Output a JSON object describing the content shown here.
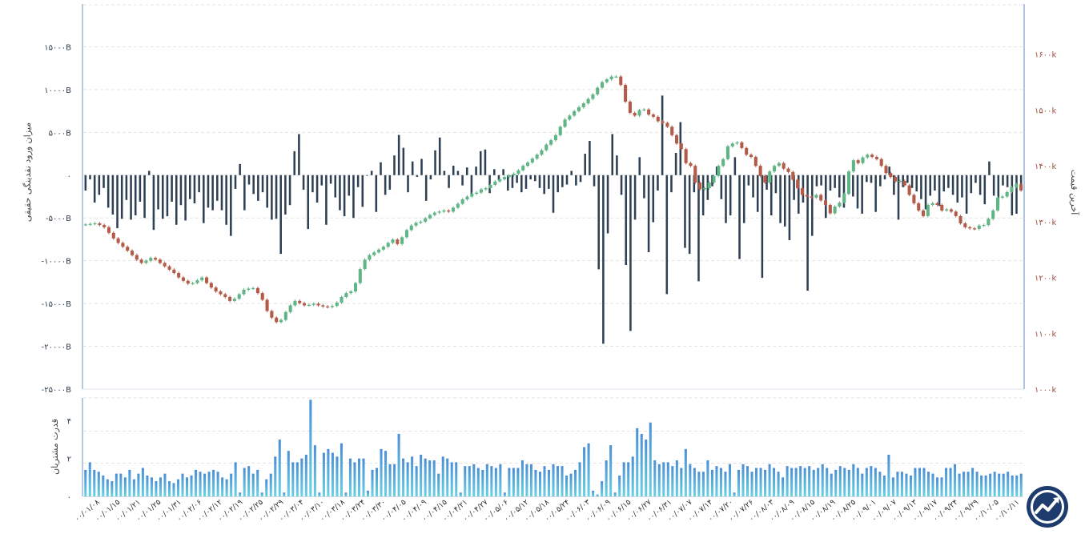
{
  "chart_data": [
    {
      "type": "bar+candlestick",
      "left_axis": {
        "label": "میزان ورود نقدینگی حقیقی",
        "ticks": [
          "۱۵۰۰۰B",
          "۱۰۰۰۰B",
          "۵۰۰۰B",
          "۰",
          "-۵۰۰۰B",
          "-۱۰۰۰۰B",
          "-۱۵۰۰۰B",
          "-۲۰۰۰۰B",
          "-۲۵۰۰۰B"
        ],
        "tick_values": [
          15000,
          10000,
          5000,
          0,
          -5000,
          -10000,
          -15000,
          -20000,
          -25000
        ],
        "ylim": [
          -25000,
          20000
        ],
        "unit": "B"
      },
      "right_axis": {
        "label": "آخرین قیمت",
        "ticks": [
          "۱۶۰۰k",
          "۱۵۰۰k",
          "۱۴۰۰k",
          "۱۳۰۰k",
          "۱۲۰۰k",
          "۱۱۰۰k",
          "۱۰۰۰k"
        ],
        "tick_values": [
          1600,
          1500,
          1400,
          1300,
          1200,
          1100,
          1000
        ],
        "ylim": [
          1000,
          1690
        ],
        "unit": "k"
      },
      "x_tick_labels": [
        "۰۰/۰۱/۰۸",
        "۰۰/۰۱/۱۵",
        "۰۰/۰۱/۲۱",
        "۰۰/۰۱/۲۵",
        "۰۰/۰۱/۳۱",
        "۰۰/۰۲/۰۶",
        "۰۰/۰۲/۱۲",
        "۰۰/۰۲/۱۹",
        "۰۰/۰۲/۲۵",
        "۰۰/۰۲/۲۹",
        "۰۰/۰۳/۰۴",
        "۰۰/۰۳/۱۰",
        "۰۰/۰۳/۱۸",
        "۰۰/۰۳/۲۴",
        "۰۰/۰۳/۳۰",
        "۰۰/۰۴/۰۵",
        "۰۰/۰۴/۰۹",
        "۰۰/۰۴/۱۵",
        "۰۰/۰۴/۲۱",
        "۰۰/۰۴/۲۷",
        "۰۰/۰۵/۰۶",
        "۰۰/۰۵/۱۲",
        "۰۰/۰۵/۱۸",
        "۰۰/۰۵/۲۴",
        "۰۰/۰۶/۰۳",
        "۰۰/۰۶/۰۹",
        "۰۰/۰۶/۱۵",
        "۰۰/۰۶/۲۷",
        "۰۰/۰۶/۳۱",
        "۰۰/۰۷/۰۷",
        "۰۰/۰۷/۱۴",
        "۰۰/۰۷/۲۰",
        "۰۰/۰۷/۲۶",
        "۰۰/۰۸/۰۳",
        "۰۰/۰۸/۰۹",
        "۰۰/۰۸/۱۵",
        "۰۰/۰۸/۱۹",
        "۰۰/۰۸/۲۵",
        "۰۰/۰۹/۰۱",
        "۰۰/۰۹/۰۷",
        "۰۰/۰۹/۱۳",
        "۰۰/۰۹/۱۷",
        "۰۰/۰۹/۲۴",
        "۰۰/۰۹/۲۹",
        "۰۰/۱۰/۰۵",
        "۰۰/۱۰/۱۱"
      ],
      "inflow_values": [
        -1800,
        -500,
        -3200,
        -2300,
        -1500,
        -3800,
        -4600,
        -6200,
        -5100,
        -2900,
        -5200,
        -4700,
        -3100,
        -5000,
        500,
        -6400,
        -4000,
        -5100,
        -4800,
        -3100,
        -5800,
        -3500,
        -5300,
        -2800,
        -3300,
        -2000,
        -5600,
        -3800,
        -4100,
        -3000,
        -4100,
        -5800,
        -7100,
        -1600,
        1300,
        -4100,
        -1100,
        -2200,
        -3000,
        -2000,
        -3800,
        -5200,
        -5100,
        -9200,
        -4600,
        -3500,
        2800,
        4800,
        -1700,
        -6300,
        -2000,
        -3200,
        -1200,
        -5800,
        -1000,
        -2600,
        -4100,
        -4800,
        -2400,
        -5000,
        -1400,
        -3700,
        0,
        500,
        -4300,
        1500,
        -2300,
        -1700,
        2300,
        4700,
        3200,
        -2000,
        1600,
        -200,
        1900,
        -3000,
        -500,
        2900,
        4400,
        500,
        -1500,
        1100,
        500,
        -1200,
        900,
        -2300,
        1000,
        2800,
        3000,
        -2100,
        700,
        -600,
        700,
        -1800,
        -1500,
        -900,
        -2000,
        -1600,
        -500,
        -700,
        -1500,
        -2200,
        -1600,
        -4400,
        -2000,
        -1400,
        -1100,
        500,
        -1200,
        -800,
        2500,
        4000,
        -1300,
        -11000,
        -19700,
        -6800,
        4800,
        2300,
        -2300,
        -10500,
        -18200,
        -5200,
        2100,
        -2700,
        -9000,
        -5500,
        -1800,
        9300,
        -13900,
        -2000,
        2600,
        6200,
        -8500,
        -9200,
        -2000,
        -12400,
        -4700,
        -2900,
        -1300,
        1000,
        -2800,
        -5600,
        -4700,
        2100,
        -9800,
        -5600,
        -1200,
        -2600,
        -4300,
        -12000,
        -1700,
        -4700,
        -2100,
        -5600,
        -6000,
        -7600,
        -2900,
        -4500,
        -3200,
        -13500,
        -7100,
        -1300,
        -1200,
        -5000,
        -1800,
        -1500,
        -2600,
        -3800,
        -2200,
        -2500,
        -3900,
        -4500,
        -800,
        -900,
        -4300,
        -1300,
        -500,
        1000,
        -2300,
        -5200,
        -1400,
        -900,
        -1500,
        -1900,
        -2800,
        -4000,
        -2400,
        -1800,
        -3600,
        -1900,
        -1500,
        -2300,
        -3200,
        -2600,
        -4500,
        -2100,
        -900,
        -2300,
        -3400,
        1600,
        -2400,
        -3600,
        -1200,
        -1400,
        -4700,
        -4500,
        -1800
      ],
      "price_close": [
        1295,
        1296,
        1297,
        1294,
        1290,
        1280,
        1270,
        1262,
        1255,
        1248,
        1240,
        1232,
        1226,
        1230,
        1235,
        1232,
        1226,
        1220,
        1214,
        1208,
        1200,
        1194,
        1189,
        1190,
        1195,
        1200,
        1190,
        1182,
        1175,
        1170,
        1165,
        1158,
        1162,
        1170,
        1178,
        1180,
        1181,
        1172,
        1160,
        1140,
        1128,
        1120,
        1124,
        1138,
        1150,
        1158,
        1154,
        1150,
        1151,
        1153,
        1150,
        1148,
        1147,
        1149,
        1155,
        1165,
        1172,
        1175,
        1190,
        1215,
        1232,
        1240,
        1245,
        1250,
        1255,
        1262,
        1268,
        1260,
        1272,
        1285,
        1293,
        1298,
        1300,
        1306,
        1312,
        1316,
        1318,
        1320,
        1318,
        1325,
        1332,
        1340,
        1345,
        1350,
        1352,
        1358,
        1360,
        1366,
        1372,
        1376,
        1380,
        1383,
        1386,
        1392,
        1400,
        1406,
        1413,
        1420,
        1428,
        1438,
        1446,
        1455,
        1470,
        1483,
        1490,
        1498,
        1505,
        1512,
        1520,
        1528,
        1540,
        1550,
        1555,
        1560,
        1560,
        1545,
        1515,
        1495,
        1490,
        1500,
        1501,
        1492,
        1488,
        1480,
        1477,
        1470,
        1455,
        1440,
        1430,
        1405,
        1400,
        1370,
        1358,
        1360,
        1370,
        1382,
        1400,
        1412,
        1435,
        1440,
        1442,
        1432,
        1420,
        1416,
        1400,
        1382,
        1370,
        1390,
        1400,
        1405,
        1395,
        1389,
        1375,
        1360,
        1348,
        1345,
        1343,
        1348,
        1338,
        1330,
        1315,
        1327,
        1334,
        1350,
        1390,
        1410,
        1405,
        1415,
        1420,
        1416,
        1412,
        1400,
        1387,
        1380,
        1372,
        1373,
        1365,
        1348,
        1333,
        1320,
        1310,
        1330,
        1333,
        1330,
        1320,
        1322,
        1318,
        1310,
        1297,
        1290,
        1288,
        1287,
        1293,
        1294,
        1305,
        1320,
        1343,
        1345,
        1353,
        1362,
        1367,
        1356
      ],
      "buyer_power_label": "قدرت مشتریان",
      "buyer_power_ticks": [
        "۴",
        "۲",
        "۰"
      ],
      "buyer_power_tick_values": [
        4,
        2,
        0
      ],
      "buyer_power_ylim": [
        0,
        5.2
      ],
      "buyer_power_values": [
        1.4,
        1.8,
        1.4,
        1.3,
        1.1,
        0.9,
        0.8,
        1.2,
        1.2,
        1.0,
        1.4,
        0.9,
        1.2,
        1.5,
        1.1,
        1.0,
        0.8,
        1.0,
        1.2,
        0.8,
        0.7,
        0.9,
        1.2,
        1.0,
        1.1,
        1.4,
        1.3,
        1.2,
        1.3,
        1.4,
        1.3,
        1.0,
        0.9,
        1.2,
        1.8,
        0.2,
        1.5,
        1.6,
        1.2,
        1.4,
        0.2,
        0.9,
        1.2,
        2.1,
        3.0,
        0.2,
        2.4,
        1.8,
        1.8,
        2.0,
        2.2,
        5.1,
        2.7,
        0.2,
        2.3,
        2.5,
        2.3,
        2.1,
        2.8,
        0.2,
        2.0,
        1.8,
        2.0,
        2.0,
        0.3,
        1.4,
        1.5,
        2.5,
        2.4,
        1.7,
        1.7,
        3.3,
        2.0,
        1.8,
        2.1,
        1.6,
        2.2,
        2.0,
        1.9,
        1.9,
        1.2,
        2.1,
        2.0,
        1.8,
        1.8,
        0.2,
        1.6,
        1.6,
        1.7,
        1.5,
        1.4,
        1.7,
        1.6,
        1.5,
        1.7,
        0.2,
        1.5,
        1.5,
        1.5,
        1.9,
        1.7,
        1.7,
        1.4,
        1.3,
        1.6,
        1.4,
        1.7,
        1.6,
        1.6,
        1.1,
        1.2,
        1.4,
        1.8,
        2.6,
        2.8,
        0.3,
        0.1,
        0.8,
        1.9,
        2.7,
        0.2,
        1.1,
        1.8,
        1.8,
        2.1,
        3.6,
        3.3,
        3.0,
        3.9,
        1.9,
        1.7,
        1.8,
        1.8,
        1.6,
        1.9,
        1.5,
        2.5,
        1.7,
        1.5,
        1.3,
        1.3,
        1.9,
        1.4,
        1.6,
        1.5,
        1.3,
        1.7,
        0.2,
        1.4,
        1.7,
        1.6,
        1.3,
        1.5,
        1.5,
        1.4,
        1.7,
        1.5,
        1.3,
        1.0,
        1.6,
        1.5,
        1.5,
        1.6,
        1.5,
        1.6,
        1.4,
        1.5,
        1.7,
        1.5,
        1.2,
        1.4,
        1.6,
        1.5,
        1.4,
        1.7,
        1.5,
        1.2,
        1.5,
        1.6,
        1.5,
        1.3,
        1.1,
        2.2,
        1.0,
        1.3,
        1.3,
        1.2,
        1.1,
        1.5,
        1.5,
        1.5,
        1.3,
        1.2,
        1.0,
        1.0,
        1.5,
        1.5,
        1.7,
        1.2,
        1.3,
        1.3,
        1.5,
        1.3,
        1.1,
        1.1,
        1.2,
        1.3,
        1.2,
        1.2,
        1.3,
        1.1,
        1.1,
        1.2
      ],
      "colors": {
        "inflow_bar": "#2e4053",
        "candle_up": "#5fb585",
        "candle_down": "#b45a48",
        "volume_top": "#4a8fd6",
        "volume_bottom": "#6ad0e4",
        "right_axis": "#b0c4de",
        "right_ticks": "#a04b3c"
      },
      "grid": true
    }
  ],
  "logo": {
    "icon": "trend-arrow-logo-icon",
    "bg": "#1d3b6c"
  }
}
